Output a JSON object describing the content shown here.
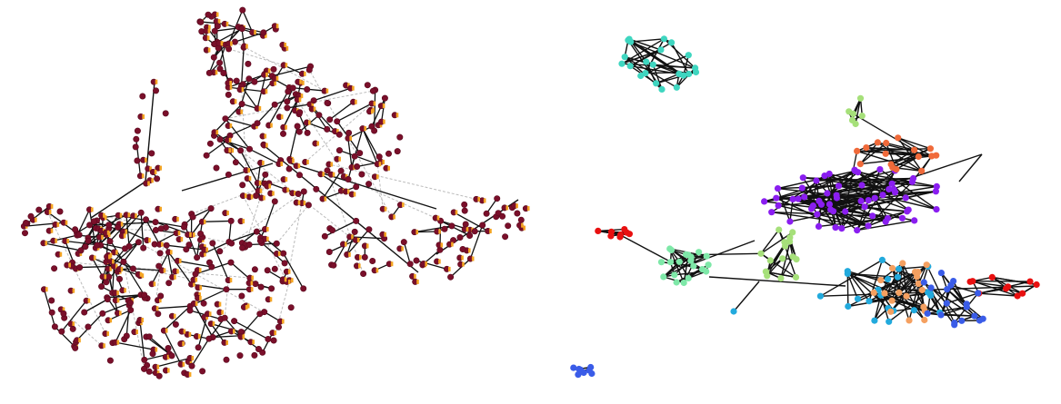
{
  "figure": {
    "panels": [
      {
        "id": "left",
        "description_name": "dense-graph-panel",
        "node_color": "#7a0f2a",
        "node_edge_color": "#5a0a1e",
        "marker_color": "#f5a623",
        "edge_color": "#111111",
        "dashed_edge_color": "#bbbbbb"
      },
      {
        "id": "right",
        "description_name": "community-graph-panel",
        "edge_color": "#111111",
        "communities": [
          {
            "name": "turquoise",
            "color": "#3fd6c0"
          },
          {
            "name": "purple",
            "color": "#8a1ef0"
          },
          {
            "name": "orange-red",
            "color": "#f06a3a"
          },
          {
            "name": "red",
            "color": "#e81010"
          },
          {
            "name": "light-green",
            "color": "#a6e07a"
          },
          {
            "name": "mint",
            "color": "#7ee8a8"
          },
          {
            "name": "sky-blue",
            "color": "#22aadd"
          },
          {
            "name": "light-orange",
            "color": "#f5a060"
          },
          {
            "name": "royal-blue",
            "color": "#3a5ce8"
          }
        ]
      }
    ]
  }
}
